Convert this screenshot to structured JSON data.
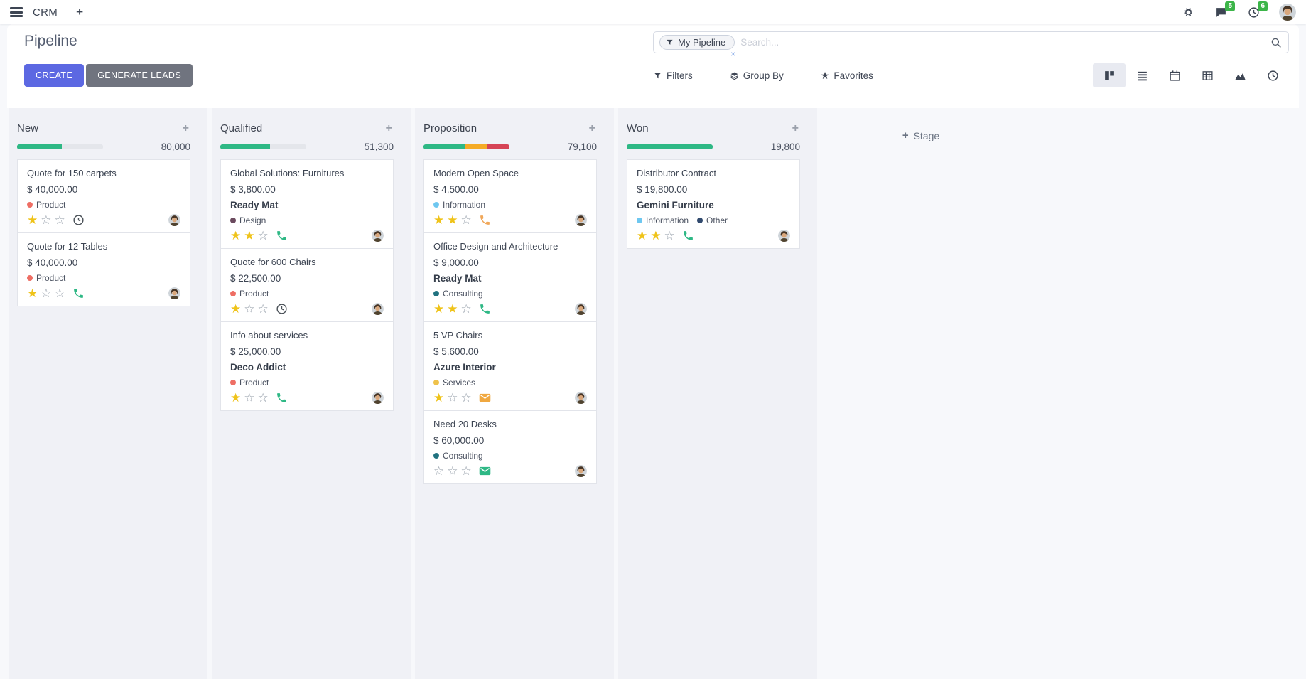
{
  "colors": {
    "accent": "#5c68e2",
    "secondary_button": "#70747f",
    "success_green": "#2eb885",
    "warning_orange": "#f5ab26",
    "danger_red": "#d64456",
    "badge_green": "#3cb549",
    "bar_empty": "#e4e6eb"
  },
  "navbar": {
    "app": "CRM",
    "message_badge": "5",
    "activity_badge": "6"
  },
  "control": {
    "title": "Pipeline",
    "create": "CREATE",
    "generate_leads": "GENERATE LEADS",
    "facet": "My Pipeline",
    "facet_remove": "×",
    "search_placeholder": "Search...",
    "filters": "Filters",
    "group_by": "Group By",
    "favorites": "Favorites",
    "views": [
      "kanban",
      "list",
      "calendar",
      "pivot",
      "graph",
      "activity"
    ],
    "active_view": 0
  },
  "board": {
    "add_stage_plus": "+",
    "add_stage": "Stage",
    "columns": [
      {
        "name": "New",
        "amount": "80,000",
        "progress": [
          {
            "color": "#2eb885",
            "pct": 52
          },
          {
            "color": "#e4e6eb",
            "pct": 48
          }
        ],
        "cards": [
          {
            "title": "Quote for 150 carpets",
            "amount": "$ 40,000.00",
            "partner": "",
            "tags": [
              {
                "label": "Product",
                "color": "#ee6e64"
              }
            ],
            "stars": 1,
            "activity": {
              "icon": "clock-icon",
              "color": "#495057"
            }
          },
          {
            "title": "Quote for 12 Tables",
            "amount": "$ 40,000.00",
            "partner": "",
            "tags": [
              {
                "label": "Product",
                "color": "#ee6e64"
              }
            ],
            "stars": 1,
            "activity": {
              "icon": "phone-icon",
              "color": "#2eb885"
            }
          }
        ]
      },
      {
        "name": "Qualified",
        "amount": "51,300",
        "progress": [
          {
            "color": "#2eb885",
            "pct": 58
          },
          {
            "color": "#e4e6eb",
            "pct": 42
          }
        ],
        "cards": [
          {
            "title": "Global Solutions: Furnitures",
            "amount": "$ 3,800.00",
            "partner": "Ready Mat",
            "tags": [
              {
                "label": "Design",
                "color": "#6b4a5e"
              }
            ],
            "stars": 2,
            "activity": {
              "icon": "phone-icon",
              "color": "#2eb885"
            }
          },
          {
            "title": "Quote for 600 Chairs",
            "amount": "$ 22,500.00",
            "partner": "",
            "tags": [
              {
                "label": "Product",
                "color": "#ee6e64"
              }
            ],
            "stars": 1,
            "activity": {
              "icon": "clock-icon",
              "color": "#495057"
            }
          },
          {
            "title": "Info about services",
            "amount": "$ 25,000.00",
            "partner": "Deco Addict",
            "tags": [
              {
                "label": "Product",
                "color": "#ee6e64"
              }
            ],
            "stars": 1,
            "activity": {
              "icon": "phone-icon",
              "color": "#2eb885"
            }
          }
        ]
      },
      {
        "name": "Proposition",
        "amount": "79,100",
        "progress": [
          {
            "color": "#2eb885",
            "pct": 49
          },
          {
            "color": "#f5ab26",
            "pct": 25
          },
          {
            "color": "#d64456",
            "pct": 26
          }
        ],
        "cards": [
          {
            "title": "Modern Open Space",
            "amount": "$ 4,500.00",
            "partner": "",
            "tags": [
              {
                "label": "Information",
                "color": "#6ec7f0"
              }
            ],
            "stars": 2,
            "activity": {
              "icon": "phone-icon",
              "color": "#f0a759"
            }
          },
          {
            "title": "Office Design and Architecture",
            "amount": "$ 9,000.00",
            "partner": "Ready Mat",
            "tags": [
              {
                "label": "Consulting",
                "color": "#20727f"
              }
            ],
            "stars": 2,
            "activity": {
              "icon": "phone-icon",
              "color": "#2eb885"
            }
          },
          {
            "title": "5 VP Chairs",
            "amount": "$ 5,600.00",
            "partner": "Azure Interior",
            "tags": [
              {
                "label": "Services",
                "color": "#efc24b"
              }
            ],
            "stars": 1,
            "activity": {
              "icon": "envelope-icon",
              "color": "#f0a840"
            }
          },
          {
            "title": "Need 20 Desks",
            "amount": "$ 60,000.00",
            "partner": "",
            "tags": [
              {
                "label": "Consulting",
                "color": "#20727f"
              }
            ],
            "stars": 0,
            "activity": {
              "icon": "envelope-icon",
              "color": "#2eb885"
            }
          }
        ]
      },
      {
        "name": "Won",
        "amount": "19,800",
        "progress": [
          {
            "color": "#2eb885",
            "pct": 100
          }
        ],
        "cards": [
          {
            "title": "Distributor Contract",
            "amount": "$ 19,800.00",
            "partner": "Gemini Furniture",
            "tags": [
              {
                "label": "Information",
                "color": "#6ec7f0"
              },
              {
                "label": "Other",
                "color": "#314a6e"
              }
            ],
            "stars": 2,
            "activity": {
              "icon": "phone-icon",
              "color": "#2eb885"
            }
          }
        ]
      }
    ]
  }
}
